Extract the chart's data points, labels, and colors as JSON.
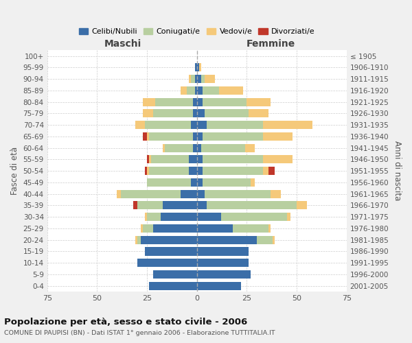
{
  "age_groups": [
    "0-4",
    "5-9",
    "10-14",
    "15-19",
    "20-24",
    "25-29",
    "30-34",
    "35-39",
    "40-44",
    "45-49",
    "50-54",
    "55-59",
    "60-64",
    "65-69",
    "70-74",
    "75-79",
    "80-84",
    "85-89",
    "90-94",
    "95-99",
    "100+"
  ],
  "birth_years": [
    "2001-2005",
    "1996-2000",
    "1991-1995",
    "1986-1990",
    "1981-1985",
    "1976-1980",
    "1971-1975",
    "1966-1970",
    "1961-1965",
    "1956-1960",
    "1951-1955",
    "1946-1950",
    "1941-1945",
    "1936-1940",
    "1931-1935",
    "1926-1930",
    "1921-1925",
    "1916-1920",
    "1911-1915",
    "1906-1910",
    "≤ 1905"
  ],
  "males": {
    "celibe": [
      24,
      22,
      30,
      26,
      28,
      22,
      18,
      17,
      8,
      3,
      4,
      4,
      2,
      2,
      3,
      2,
      2,
      1,
      1,
      1,
      0
    ],
    "coniugato": [
      0,
      0,
      0,
      0,
      2,
      5,
      7,
      13,
      30,
      22,
      20,
      19,
      14,
      22,
      23,
      20,
      19,
      4,
      2,
      0,
      0
    ],
    "vedovo": [
      0,
      0,
      0,
      0,
      1,
      1,
      1,
      0,
      2,
      0,
      1,
      1,
      1,
      1,
      5,
      5,
      6,
      3,
      1,
      0,
      0
    ],
    "divorziato": [
      0,
      0,
      0,
      0,
      0,
      0,
      0,
      2,
      0,
      0,
      1,
      1,
      0,
      2,
      0,
      0,
      0,
      0,
      0,
      0,
      0
    ]
  },
  "females": {
    "nubile": [
      22,
      27,
      26,
      26,
      30,
      18,
      12,
      5,
      4,
      3,
      3,
      3,
      2,
      3,
      5,
      4,
      3,
      3,
      2,
      1,
      0
    ],
    "coniugata": [
      0,
      0,
      0,
      0,
      8,
      18,
      33,
      45,
      33,
      24,
      30,
      30,
      22,
      30,
      28,
      22,
      22,
      8,
      2,
      0,
      0
    ],
    "vedova": [
      0,
      0,
      0,
      0,
      1,
      1,
      2,
      5,
      5,
      2,
      3,
      15,
      5,
      15,
      25,
      10,
      12,
      12,
      5,
      1,
      0
    ],
    "divorziata": [
      0,
      0,
      0,
      0,
      0,
      0,
      0,
      0,
      0,
      0,
      3,
      0,
      0,
      0,
      0,
      0,
      0,
      0,
      0,
      0,
      0
    ]
  },
  "colors": {
    "celibe": "#3b6ea8",
    "coniugato": "#b8cfa0",
    "vedovo": "#f5c97a",
    "divorziato": "#c0372a"
  },
  "title": "Popolazione per età, sesso e stato civile - 2006",
  "subtitle": "COMUNE DI PAUPISI (BN) - Dati ISTAT 1° gennaio 2006 - Elaborazione TUTTITALIA.IT",
  "xlabel_left": "Maschi",
  "xlabel_right": "Femmine",
  "ylabel_left": "Fasce di età",
  "ylabel_right": "Anni di nascita",
  "xlim": 75,
  "bg_color": "#f0f0f0",
  "plot_bg_color": "#ffffff",
  "legend_labels": [
    "Celibi/Nubili",
    "Coniugati/e",
    "Vedovi/e",
    "Divorziati/e"
  ]
}
